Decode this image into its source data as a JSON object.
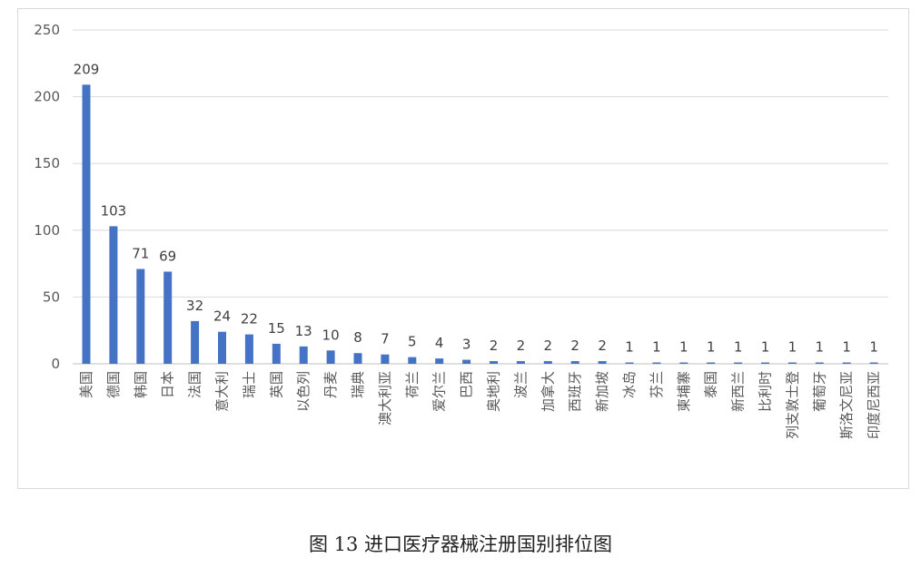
{
  "caption": "图 13  进口医疗器械注册国别排位图",
  "chart_data": {
    "type": "bar",
    "categories": [
      "美国",
      "德国",
      "韩国",
      "日本",
      "法国",
      "意大利",
      "瑞士",
      "英国",
      "以色列",
      "丹麦",
      "瑞典",
      "澳大利亚",
      "荷兰",
      "爱尔兰",
      "巴西",
      "奥地利",
      "波兰",
      "加拿大",
      "西班牙",
      "新加坡",
      "冰岛",
      "芬兰",
      "柬埔寨",
      "泰国",
      "新西兰",
      "比利时",
      "列支敦士登",
      "葡萄牙",
      "斯洛文尼亚",
      "印度尼西亚"
    ],
    "values": [
      209,
      103,
      71,
      69,
      32,
      24,
      22,
      15,
      13,
      10,
      8,
      7,
      5,
      4,
      3,
      2,
      2,
      2,
      2,
      2,
      1,
      1,
      1,
      1,
      1,
      1,
      1,
      1,
      1,
      1
    ],
    "ylim": [
      0,
      250
    ],
    "yticks": [
      0,
      50,
      100,
      150,
      200,
      250
    ],
    "bar_color": "#4472c4",
    "grid": true,
    "title": "",
    "xlabel": "",
    "ylabel": ""
  }
}
